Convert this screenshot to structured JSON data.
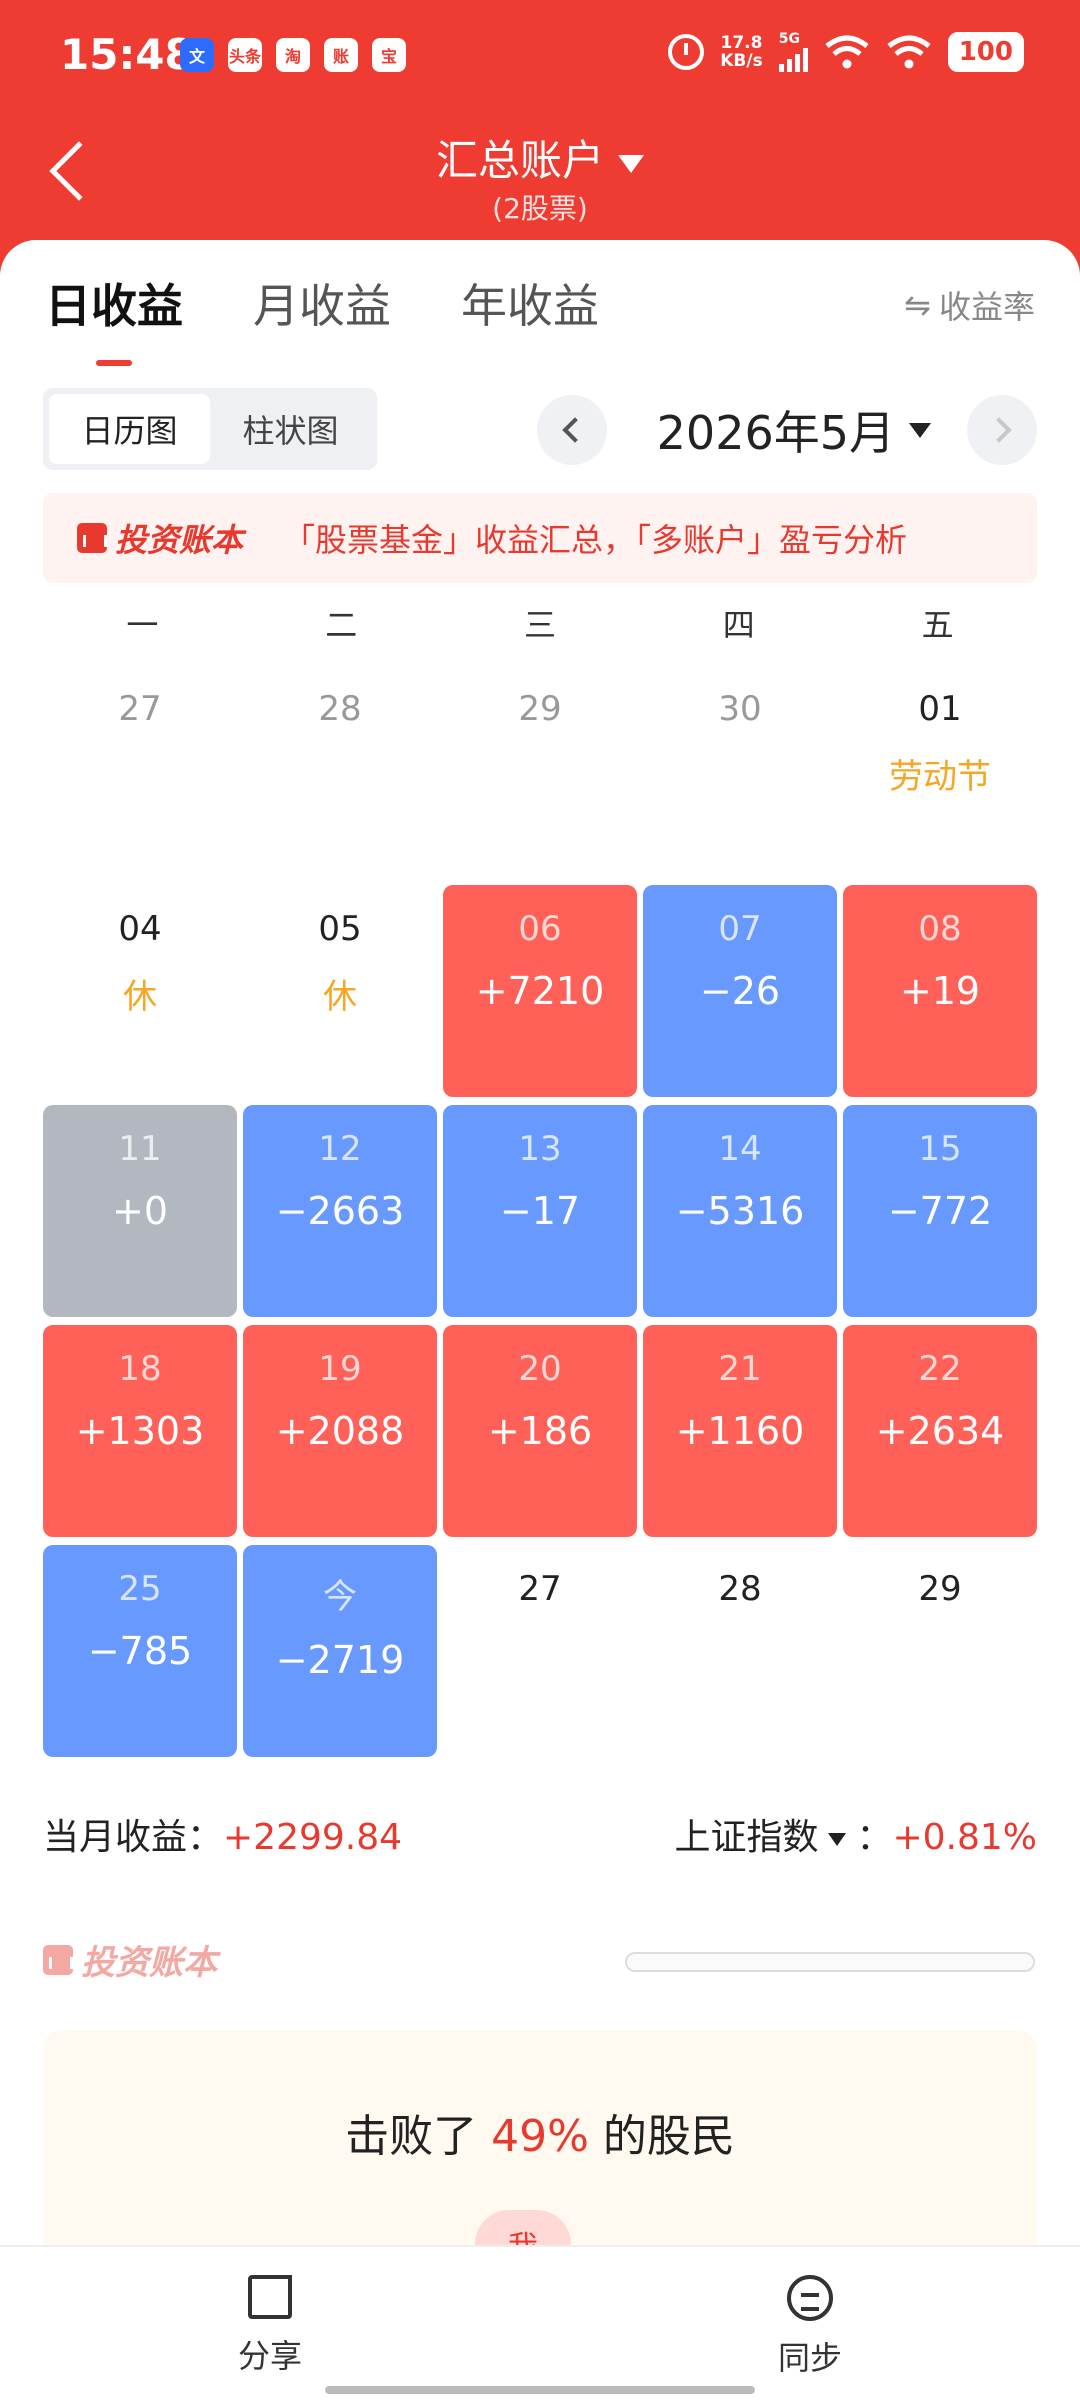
{
  "status": {
    "time": "15:48",
    "notif_icons": [
      "文",
      "头条",
      "淘",
      "账",
      "宝"
    ],
    "speed_value": "17.8",
    "speed_unit": "KB/s",
    "network": "5G",
    "battery": "100"
  },
  "header": {
    "title": "汇总账户",
    "subtitle": "(2股票)"
  },
  "tabs": [
    {
      "label": "日收益",
      "active": true
    },
    {
      "label": "月收益",
      "active": false
    },
    {
      "label": "年收益",
      "active": false
    }
  ],
  "rate_toggle": {
    "icon": "⇋",
    "label": "收益率"
  },
  "view_toggle": {
    "calendar": "日历图",
    "bar": "柱状图",
    "active": "calendar"
  },
  "month": "2026年5月",
  "banner": {
    "logo": "投资账本",
    "text": "「股票基金」收益汇总，「多账户」盈亏分析"
  },
  "weekdays": [
    "一",
    "二",
    "三",
    "四",
    "五"
  ],
  "calendar": [
    [
      {
        "day": "27",
        "state": "other",
        "value": ""
      },
      {
        "day": "28",
        "state": "other",
        "value": ""
      },
      {
        "day": "29",
        "state": "other",
        "value": ""
      },
      {
        "day": "30",
        "state": "other",
        "value": ""
      },
      {
        "day": "01",
        "state": "holiday",
        "value": "劳动节"
      }
    ],
    [
      {
        "day": "04",
        "state": "holiday",
        "value": "休"
      },
      {
        "day": "05",
        "state": "holiday",
        "value": "休"
      },
      {
        "day": "06",
        "state": "red",
        "value": "+7210"
      },
      {
        "day": "07",
        "state": "blue",
        "value": "−26"
      },
      {
        "day": "08",
        "state": "red",
        "value": "+19"
      }
    ],
    [
      {
        "day": "11",
        "state": "gray",
        "value": "+0"
      },
      {
        "day": "12",
        "state": "blue",
        "value": "−2663"
      },
      {
        "day": "13",
        "state": "blue",
        "value": "−17"
      },
      {
        "day": "14",
        "state": "blue",
        "value": "−5316"
      },
      {
        "day": "15",
        "state": "blue",
        "value": "−772"
      }
    ],
    [
      {
        "day": "18",
        "state": "red",
        "value": "+1303"
      },
      {
        "day": "19",
        "state": "red",
        "value": "+2088"
      },
      {
        "day": "20",
        "state": "red",
        "value": "+186"
      },
      {
        "day": "21",
        "state": "red",
        "value": "+1160"
      },
      {
        "day": "22",
        "state": "red",
        "value": "+2634"
      }
    ],
    [
      {
        "day": "25",
        "state": "blue",
        "value": "−785"
      },
      {
        "day": "今",
        "state": "blue",
        "value": "−2719"
      },
      {
        "day": "27",
        "state": "future",
        "value": ""
      },
      {
        "day": "28",
        "state": "future",
        "value": ""
      },
      {
        "day": "29",
        "state": "future",
        "value": ""
      }
    ]
  ],
  "summary": {
    "month_label": "当月收益：",
    "month_value": "+2299.84",
    "index_label": "上证指数",
    "index_sep": "：",
    "index_value": "+0.81%"
  },
  "watermark": "投资账本",
  "beat": {
    "prefix": "击败了",
    "percent": "49%",
    "suffix": "的股民",
    "me": "我"
  },
  "bottom": {
    "share": "分享",
    "sync": "同步"
  },
  "colors": {
    "accent": "#ef3c33",
    "gain": "#ff6158",
    "loss": "#6799ff",
    "flat": "#b3b8c0",
    "holiday": "#f5a623"
  }
}
